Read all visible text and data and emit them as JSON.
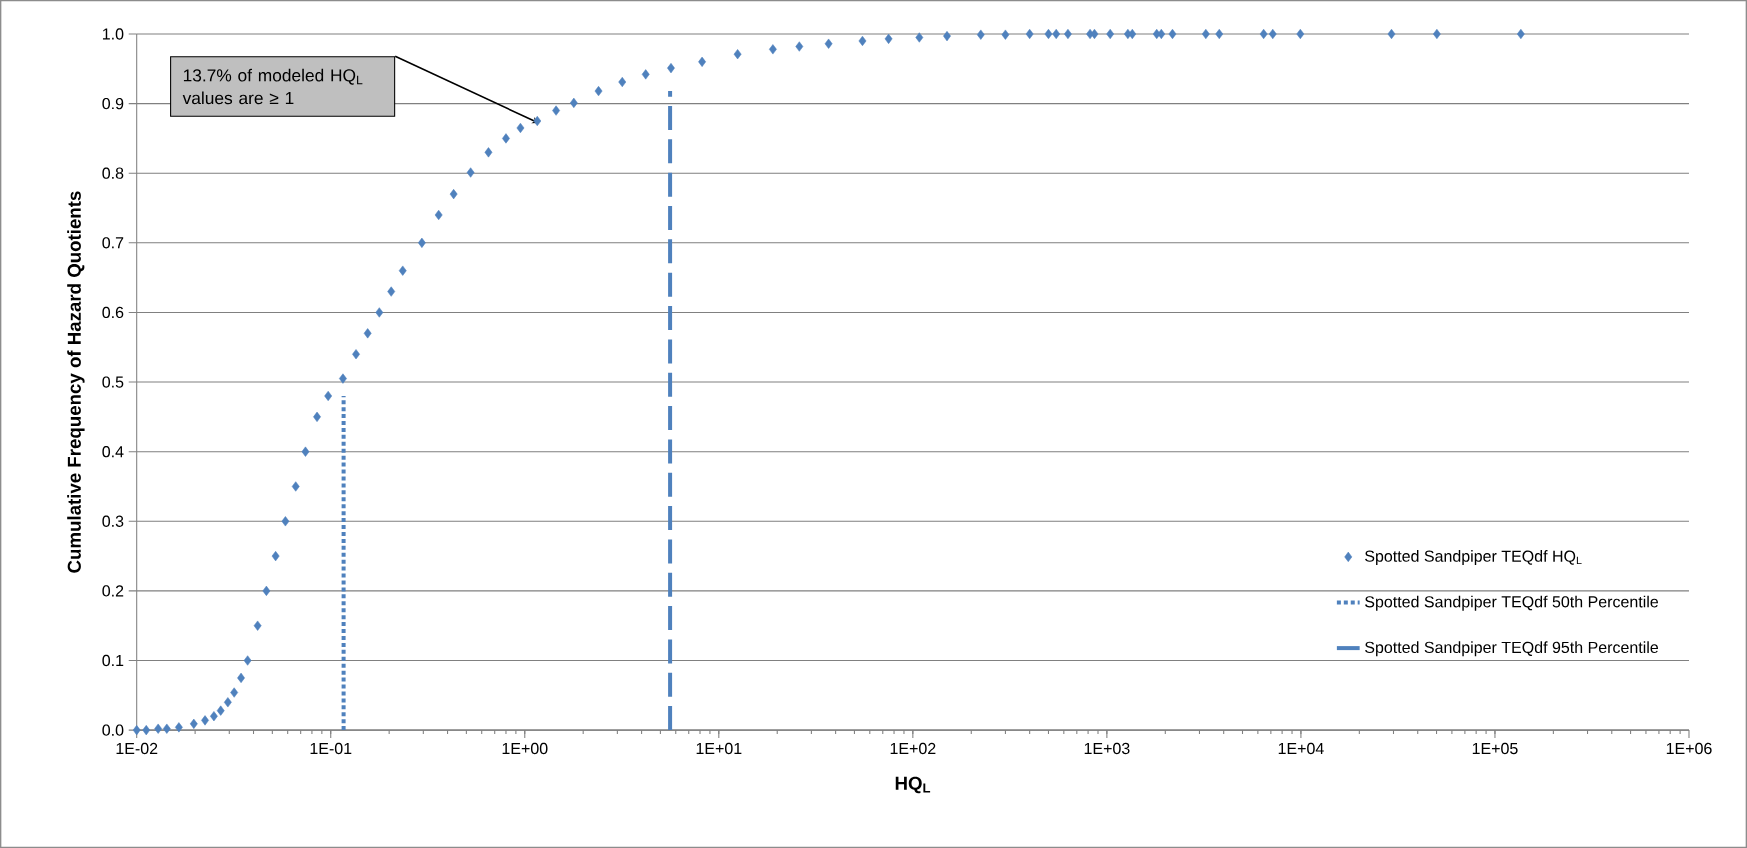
{
  "chart_data": {
    "type": "scatter",
    "xlabel": "**HQ$_{L}$**",
    "ylabel": "**Cumulative Frequency of Hazard Quotients**",
    "log": "x",
    "grid": "y",
    "legend": "right",
    "xlim": [
      0.01,
      1000000
    ],
    "ylim": [
      0,
      1
    ],
    "xticks": [
      {
        "value": 0.01,
        "label": "1E-02"
      },
      {
        "value": 0.1,
        "label": "1E-01"
      },
      {
        "value": 1,
        "label": "1E+00"
      },
      {
        "value": 10,
        "label": "1E+01"
      },
      {
        "value": 100,
        "label": "1E+02"
      },
      {
        "value": 1000,
        "label": "1E+03"
      },
      {
        "value": 10000,
        "label": "1E+04"
      },
      {
        "value": 100000,
        "label": "1E+05"
      },
      {
        "value": 1000000,
        "label": "1E+06"
      }
    ],
    "yticks": [
      {
        "value": 0,
        "label": "0.0"
      },
      {
        "value": 0.1,
        "label": "0.1"
      },
      {
        "value": 0.2,
        "label": "0.2"
      },
      {
        "value": 0.3,
        "label": "0.3"
      },
      {
        "value": 0.4,
        "label": "0.4"
      },
      {
        "value": 0.5,
        "label": "0.5"
      },
      {
        "value": 0.6,
        "label": "0.6"
      },
      {
        "value": 0.7,
        "label": "0.7"
      },
      {
        "value": 0.8,
        "label": "0.8"
      },
      {
        "value": 0.9,
        "label": "0.9"
      },
      {
        "value": 1,
        "label": "1.0"
      }
    ],
    "series": [
      {
        "name": "Spotted Sandpiper TEQdf HQ$_{L}$",
        "marker": "diamond",
        "color": "#4f81bd",
        "x": [
          0.01,
          0.0112,
          0.0129,
          0.0143,
          0.0165,
          0.0197,
          0.0225,
          0.025,
          0.0271,
          0.0295,
          0.0318,
          0.0345,
          0.0373,
          0.042,
          0.0466,
          0.052,
          0.0584,
          0.066,
          0.0741,
          0.085,
          0.097,
          0.1156,
          0.135,
          0.155,
          0.178,
          0.205,
          0.235,
          0.295,
          0.36,
          0.43,
          0.526,
          0.65,
          0.8,
          0.95,
          1.16,
          1.45,
          1.79,
          2.4,
          3.18,
          4.2,
          5.67,
          8.2,
          12.5,
          19,
          26,
          36.8,
          55,
          75,
          108,
          150,
          224,
          300,
          400,
          500,
          548,
          630,
          819,
          863,
          1040,
          1283,
          1352,
          1807,
          1908,
          2178,
          3236,
          3795,
          6427,
          7161,
          9931,
          29300,
          50200,
          136000
        ],
        "values": [
          0.0,
          0.0,
          0.002,
          0.002,
          0.004,
          0.009,
          0.014,
          0.02,
          0.028,
          0.04,
          0.054,
          0.075,
          0.1,
          0.15,
          0.2,
          0.25,
          0.3,
          0.35,
          0.4,
          0.45,
          0.48,
          0.505,
          0.54,
          0.57,
          0.6,
          0.63,
          0.66,
          0.7,
          0.74,
          0.77,
          0.801,
          0.83,
          0.85,
          0.865,
          0.875,
          0.89,
          0.901,
          0.918,
          0.931,
          0.942,
          0.951,
          0.96,
          0.971,
          0.978,
          0.982,
          0.986,
          0.99,
          0.993,
          0.995,
          0.997,
          0.999,
          0.999,
          1.0,
          1.0,
          1.0,
          1.0,
          1.0,
          1.0,
          1.0,
          1.0,
          1.0,
          1.0,
          1.0,
          1.0,
          1.0,
          1.0,
          1.0,
          1.0,
          1.0,
          1.0,
          1.0,
          1.0
        ]
      },
      {
        "name": "Spotted Sandpiper TEQdf 50th Percentile",
        "type": "line",
        "line_style": "dotted",
        "color": "#4f81bd",
        "x": [
          0.1165,
          0.1165
        ],
        "values": [
          0,
          0.48
        ]
      },
      {
        "name": "Spotted Sandpiper TEQdf 95th Percentile",
        "type": "line",
        "line_style": "dashed",
        "color": "#4f81bd",
        "x": [
          5.61,
          5.61
        ],
        "values": [
          0,
          0.918
        ]
      }
    ],
    "annotations": [
      "13.7% of modeled HQ$_{L}$ values are ≥ 1"
    ]
  }
}
